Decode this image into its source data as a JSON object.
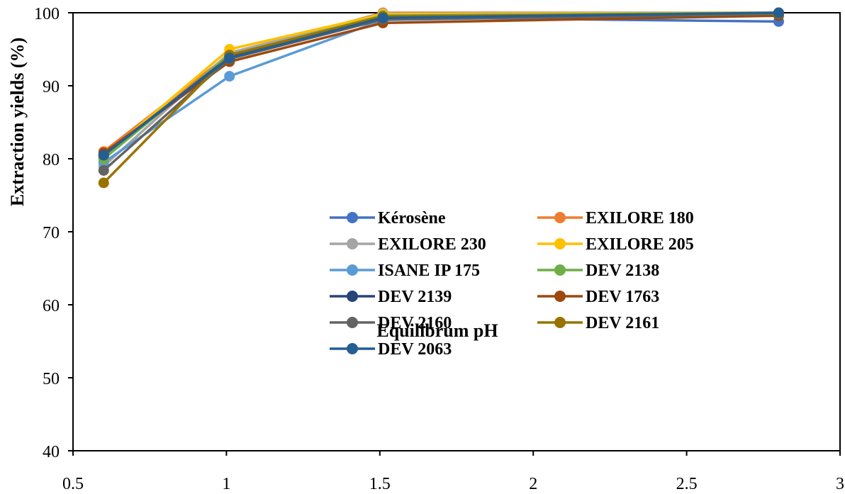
{
  "chart_data": {
    "type": "line",
    "title": "",
    "xlabel": "Equilibrum pH",
    "ylabel": "Extraction yields (%)",
    "xlim": [
      0.5,
      3
    ],
    "ylim": [
      40,
      100
    ],
    "xticks": [
      0.5,
      1,
      1.5,
      2,
      2.5,
      3
    ],
    "yticks": [
      40,
      50,
      60,
      70,
      80,
      90,
      100
    ],
    "xtick_labels": [
      "0.5",
      "1",
      "1.5",
      "2",
      "2.5",
      "3"
    ],
    "ytick_labels": [
      "40",
      "50",
      "60",
      "70",
      "80",
      "90",
      "100"
    ],
    "grid": false,
    "legend_position": "center",
    "x": [
      0.6,
      1.01,
      1.51,
      2.8
    ],
    "series": [
      {
        "name": "Kérosène",
        "color": "#4472C4",
        "values": [
          80.2,
          94.0,
          99.4,
          98.8
        ]
      },
      {
        "name": "EXILORE 180",
        "color": "#ED7D31",
        "values": [
          81.0,
          94.3,
          100.0,
          100.0
        ]
      },
      {
        "name": "EXILORE 230",
        "color": "#A5A5A5",
        "values": [
          79.0,
          94.5,
          99.9,
          100.0
        ]
      },
      {
        "name": "EXILORE 205",
        "color": "#FFC000",
        "values": [
          80.4,
          95.0,
          99.8,
          100.0
        ]
      },
      {
        "name": "ISANE IP 175",
        "color": "#5B9BD5",
        "values": [
          79.5,
          91.3,
          99.0,
          99.9
        ]
      },
      {
        "name": "DEV 2138",
        "color": "#70AD47",
        "values": [
          80.0,
          94.2,
          99.6,
          100.0
        ]
      },
      {
        "name": "DEV 2139",
        "color": "#264478",
        "values": [
          80.5,
          93.9,
          99.2,
          100.0
        ]
      },
      {
        "name": "DEV 1763",
        "color": "#9E480E",
        "values": [
          80.8,
          93.3,
          98.6,
          99.6
        ]
      },
      {
        "name": "DEV 2160",
        "color": "#636363",
        "values": [
          78.4,
          93.7,
          99.1,
          99.8
        ]
      },
      {
        "name": "DEV 2161",
        "color": "#997300",
        "values": [
          76.7,
          94.2,
          99.5,
          99.9
        ]
      },
      {
        "name": "DEV 2063",
        "color": "#255E91",
        "values": [
          80.5,
          93.8,
          99.3,
          100.0
        ]
      }
    ]
  }
}
